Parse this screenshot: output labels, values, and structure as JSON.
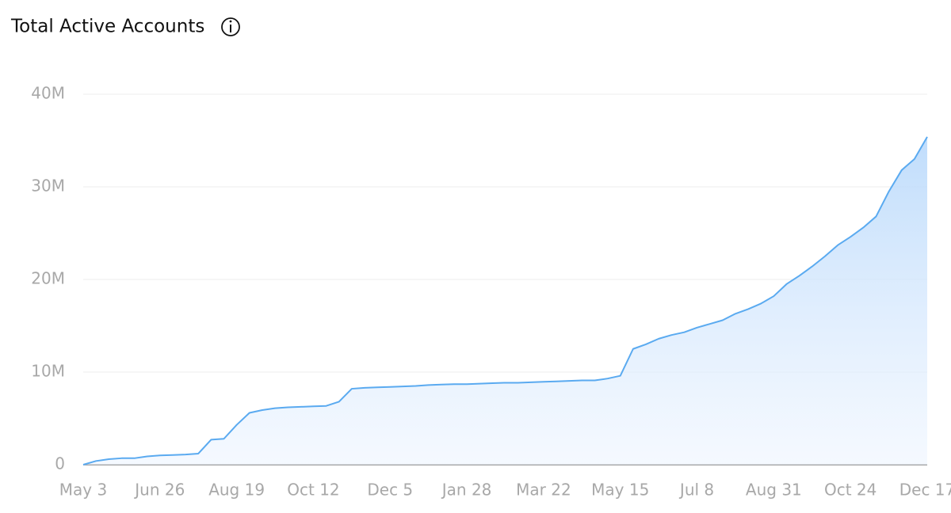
{
  "chart_data": {
    "type": "area",
    "title": "Total Active Accounts",
    "categories": [
      "May 3",
      null,
      null,
      null,
      null,
      null,
      "Jun 26",
      null,
      null,
      null,
      null,
      null,
      "Aug 19",
      null,
      null,
      null,
      null,
      null,
      "Oct 12",
      null,
      null,
      null,
      null,
      null,
      "Dec 5",
      null,
      null,
      null,
      null,
      null,
      "Jan 28",
      null,
      null,
      null,
      null,
      null,
      "Mar 22",
      null,
      null,
      null,
      null,
      null,
      "May 15",
      null,
      null,
      null,
      null,
      null,
      "Jul 8",
      null,
      null,
      null,
      null,
      null,
      "Aug 31",
      null,
      null,
      null,
      null,
      null,
      "Oct 24",
      null,
      null,
      null,
      null,
      null,
      "Dec 17"
    ],
    "values": [
      0,
      400000,
      600000,
      700000,
      700000,
      900000,
      1000000,
      1050000,
      1100000,
      1200000,
      2700000,
      2800000,
      4300000,
      5600000,
      5900000,
      6100000,
      6200000,
      6250000,
      6300000,
      6350000,
      6800000,
      8200000,
      8300000,
      8350000,
      8400000,
      8450000,
      8500000,
      8600000,
      8650000,
      8700000,
      8700000,
      8750000,
      8800000,
      8850000,
      8850000,
      8900000,
      8950000,
      9000000,
      9050000,
      9100000,
      9100000,
      9300000,
      9600000,
      12500000,
      13000000,
      13600000,
      14000000,
      14300000,
      14800000,
      15200000,
      15600000,
      16300000,
      16800000,
      17400000,
      18200000,
      19500000,
      20400000,
      21400000,
      22500000,
      23700000,
      24600000,
      25600000,
      26800000,
      29500000,
      31800000,
      33000000,
      35400000
    ],
    "color": "#5aaaf0",
    "ylim": [
      0,
      40000000
    ],
    "yticks": [
      0,
      {
        "value": 10000000,
        "label": "10M"
      },
      {
        "value": 20000000,
        "label": "20M"
      },
      {
        "value": 30000000,
        "label": "30M"
      },
      {
        "value": 40000000,
        "label": "40M"
      }
    ],
    "grid": true
  }
}
